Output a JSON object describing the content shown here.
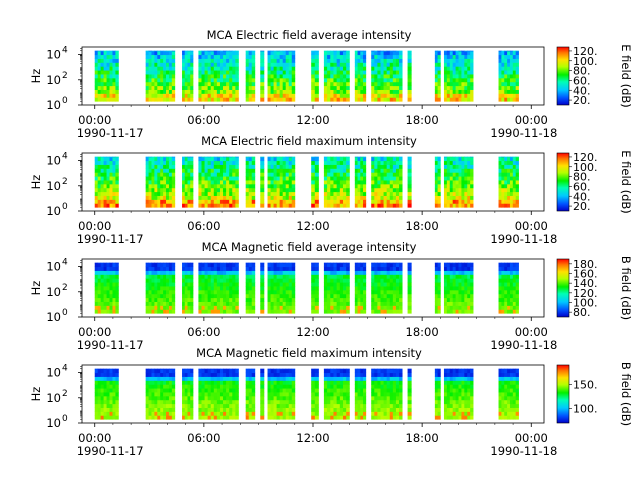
{
  "chart_data": [
    {
      "type": "heatmap",
      "title": "MCA  Electric field average intensity",
      "ylabel": "Hz",
      "colorbar_label": "E field (dB)",
      "colorbar_ticks": [
        "20.",
        "40.",
        "60.",
        "80.",
        "100.",
        "120."
      ],
      "colorbar_range": [
        10,
        128
      ],
      "quantity": "E",
      "variant": "avg"
    },
    {
      "type": "heatmap",
      "title": "MCA  Electric field maximum intensity",
      "ylabel": "Hz",
      "colorbar_label": "E field (dB)",
      "colorbar_ticks": [
        "20.",
        "40.",
        "60.",
        "80.",
        "100.",
        "120."
      ],
      "colorbar_range": [
        10,
        128
      ],
      "quantity": "E",
      "variant": "max"
    },
    {
      "type": "heatmap",
      "title": "MCA  Magnetic field average intensity",
      "ylabel": "Hz",
      "colorbar_label": "B field (dB)",
      "colorbar_ticks": [
        "80.",
        "100.",
        "120.",
        "140.",
        "160.",
        "180."
      ],
      "colorbar_range": [
        70,
        190
      ],
      "quantity": "B",
      "variant": "avg"
    },
    {
      "type": "heatmap",
      "title": "MCA  Magnetic field maximum intensity",
      "ylabel": "Hz",
      "colorbar_label": "B field (dB)",
      "colorbar_ticks": [
        "100.",
        "150."
      ],
      "colorbar_range": [
        70,
        190
      ],
      "quantity": "B",
      "variant": "max"
    }
  ],
  "shared_axes": {
    "x_ticks": [
      "00:00",
      "06:00",
      "12:00",
      "18:00",
      "00:00"
    ],
    "x_tick_hours": [
      0,
      6,
      12,
      18,
      24
    ],
    "x_date_left": "1990-11-17",
    "x_date_right": "1990-11-18",
    "x_range_hours": [
      -0.7,
      24.7
    ],
    "y_ticks": [
      "10",
      "10",
      "10"
    ],
    "y_tick_exponents": [
      "0",
      "2",
      "4"
    ],
    "y_range_log10": [
      0,
      4.6
    ]
  },
  "data_segments_hours": [
    [
      0.0,
      1.3
    ],
    [
      2.8,
      4.4
    ],
    [
      4.8,
      5.4
    ],
    [
      5.7,
      7.9
    ],
    [
      8.3,
      8.8
    ],
    [
      9.1,
      9.3
    ],
    [
      9.5,
      11.0
    ],
    [
      11.9,
      12.3
    ],
    [
      12.6,
      14.0
    ],
    [
      14.3,
      14.9
    ],
    [
      15.2,
      16.9
    ],
    [
      17.2,
      17.4
    ],
    [
      18.7,
      19.0
    ],
    [
      19.2,
      20.8
    ],
    [
      22.2,
      23.3
    ]
  ]
}
